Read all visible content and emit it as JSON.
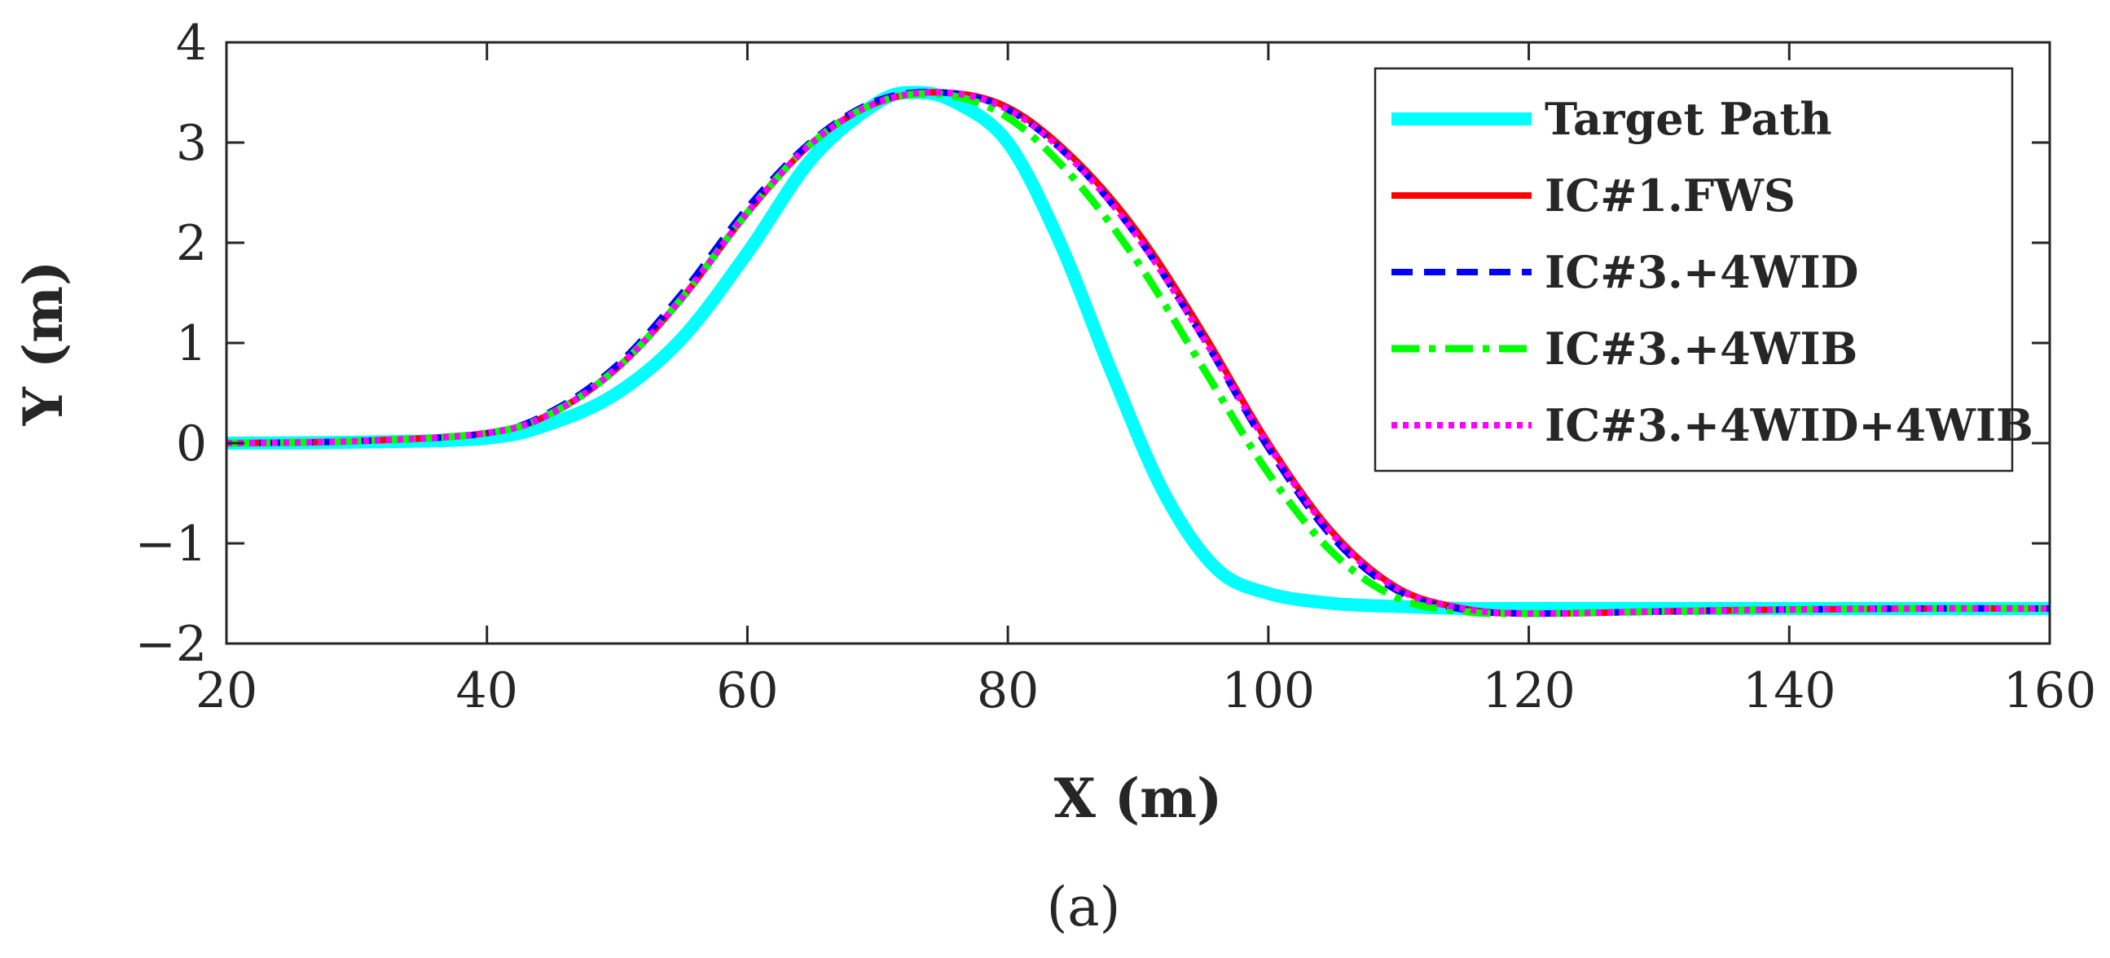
{
  "chart_data": {
    "type": "line",
    "xlabel": "X (m)",
    "ylabel": "Y (m)",
    "caption": "(a)",
    "xlim": [
      20,
      160
    ],
    "ylim": [
      -2,
      4
    ],
    "xticks": [
      20,
      40,
      60,
      80,
      100,
      120,
      140,
      160
    ],
    "yticks": [
      -2,
      -1,
      0,
      1,
      2,
      3,
      4
    ],
    "xtick_labels": [
      "20",
      "40",
      "60",
      "80",
      "100",
      "120",
      "140",
      "160"
    ],
    "ytick_labels": [
      "−2",
      "−1",
      "0",
      "1",
      "2",
      "3",
      "4"
    ],
    "grid": false,
    "legend_position": "top-right",
    "series": [
      {
        "name": "Target Path",
        "color": "#00ffff",
        "style": "solid-thick",
        "x": [
          20,
          30,
          40,
          45,
          50,
          55,
          60,
          65,
          70,
          73,
          76,
          80,
          84,
          88,
          92,
          96,
          100,
          105,
          110,
          115,
          120,
          130,
          140,
          150,
          160
        ],
        "y": [
          0,
          0.01,
          0.05,
          0.2,
          0.5,
          1.05,
          1.9,
          2.85,
          3.4,
          3.5,
          3.4,
          3.0,
          2.0,
          0.7,
          -0.5,
          -1.25,
          -1.5,
          -1.6,
          -1.63,
          -1.65,
          -1.65,
          -1.65,
          -1.65,
          -1.65,
          -1.65
        ]
      },
      {
        "name": "IC#1.FWS",
        "color": "#ff0000",
        "style": "solid",
        "x": [
          20,
          30,
          40,
          45,
          50,
          55,
          60,
          65,
          70,
          75,
          80,
          85,
          90,
          95,
          100,
          105,
          110,
          115,
          120,
          130,
          140,
          150,
          160
        ],
        "y": [
          0,
          0.02,
          0.1,
          0.3,
          0.75,
          1.45,
          2.3,
          3.0,
          3.4,
          3.5,
          3.35,
          2.85,
          2.1,
          1.1,
          0.0,
          -0.9,
          -1.45,
          -1.65,
          -1.7,
          -1.68,
          -1.66,
          -1.65,
          -1.65
        ]
      },
      {
        "name": "IC#3.+4WID",
        "color": "#0000ff",
        "style": "dashed",
        "x": [
          20,
          30,
          40,
          45,
          50,
          55,
          60,
          65,
          70,
          75,
          80,
          85,
          90,
          95,
          100,
          105,
          110,
          115,
          120,
          130,
          140,
          150,
          160
        ],
        "y": [
          0,
          0.02,
          0.1,
          0.32,
          0.78,
          1.5,
          2.35,
          3.02,
          3.42,
          3.5,
          3.33,
          2.82,
          2.05,
          1.05,
          -0.05,
          -0.95,
          -1.48,
          -1.66,
          -1.7,
          -1.68,
          -1.66,
          -1.65,
          -1.65
        ]
      },
      {
        "name": "IC#3.+4WIB",
        "color": "#00ff00",
        "style": "dashdot",
        "x": [
          20,
          30,
          40,
          45,
          50,
          55,
          60,
          65,
          70,
          75,
          80,
          85,
          90,
          95,
          100,
          105,
          110,
          115,
          120,
          130,
          140,
          150,
          160
        ],
        "y": [
          0,
          0.02,
          0.1,
          0.3,
          0.75,
          1.45,
          2.3,
          3.0,
          3.4,
          3.48,
          3.25,
          2.65,
          1.8,
          0.75,
          -0.3,
          -1.1,
          -1.55,
          -1.68,
          -1.7,
          -1.68,
          -1.66,
          -1.65,
          -1.65
        ]
      },
      {
        "name": "IC#3.+4WID+4WIB",
        "color": "#ff00ff",
        "style": "dotted",
        "x": [
          20,
          30,
          40,
          45,
          50,
          55,
          60,
          65,
          70,
          75,
          80,
          85,
          90,
          95,
          100,
          105,
          110,
          115,
          120,
          130,
          140,
          150,
          160
        ],
        "y": [
          0,
          0.02,
          0.1,
          0.3,
          0.75,
          1.45,
          2.3,
          3.0,
          3.4,
          3.5,
          3.33,
          2.82,
          2.05,
          1.05,
          -0.02,
          -0.92,
          -1.46,
          -1.65,
          -1.7,
          -1.68,
          -1.66,
          -1.65,
          -1.65
        ]
      }
    ]
  }
}
